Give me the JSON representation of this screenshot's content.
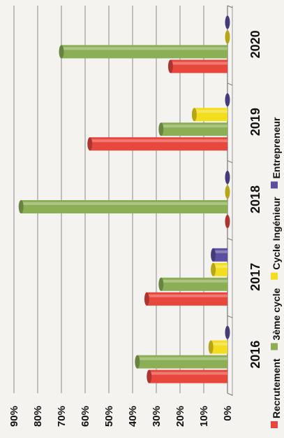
{
  "chart_data": {
    "type": "bar",
    "orientation": "horizontal",
    "categories": [
      "2016",
      "2017",
      "2018",
      "2019",
      "2020"
    ],
    "series": [
      {
        "name": "Recrutement",
        "color": "#e8473d",
        "values": [
          33,
          34,
          0,
          58,
          24
        ]
      },
      {
        "name": "3ème cycle",
        "color": "#8cae55",
        "values": [
          38,
          28,
          87,
          28,
          70
        ]
      },
      {
        "name": "Cycle Ingénieur",
        "color": "#f2dd1f",
        "values": [
          7,
          6,
          0,
          14,
          0
        ]
      },
      {
        "name": "Entrepreneur",
        "color": "#5d4fa0",
        "values": [
          0,
          6,
          0,
          0,
          0
        ]
      }
    ],
    "xlim": [
      0,
      90
    ],
    "tick_labels": [
      "0%",
      "10%",
      "20%",
      "30%",
      "40%",
      "50%",
      "60%",
      "70%",
      "80%",
      "90%"
    ],
    "grid": true,
    "legend_position": "bottom"
  }
}
